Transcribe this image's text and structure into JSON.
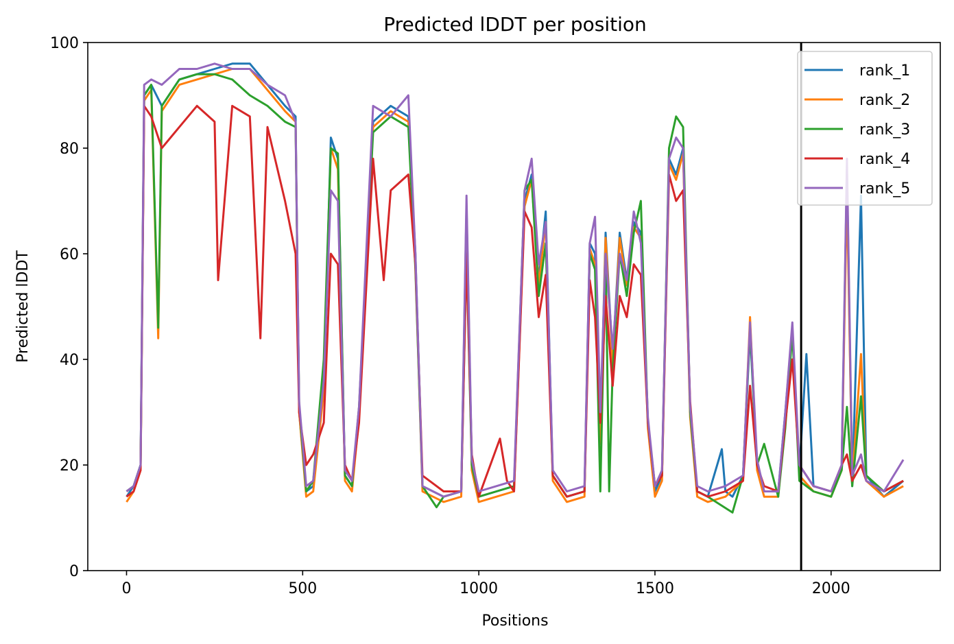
{
  "chart_data": {
    "type": "line",
    "title": "Predicted lDDT per position",
    "xlabel": "Positions",
    "ylabel": "Predicted lDDT",
    "xlim": [
      -110,
      2310
    ],
    "ylim": [
      0,
      100
    ],
    "xticks": [
      "0",
      "500",
      "1000",
      "1500",
      "2000"
    ],
    "yticks": [
      "0",
      "20",
      "40",
      "60",
      "80",
      "100"
    ],
    "vline_x": 1915,
    "legend_position": "upper right",
    "grid": false,
    "series": [
      {
        "name": "rank_1",
        "color": "#1f77b4",
        "x": [
          0,
          20,
          40,
          50,
          70,
          100,
          150,
          200,
          250,
          300,
          350,
          400,
          450,
          480,
          490,
          510,
          530,
          560,
          580,
          600,
          620,
          640,
          660,
          700,
          750,
          800,
          820,
          840,
          900,
          950,
          965,
          980,
          1000,
          1050,
          1100,
          1130,
          1150,
          1170,
          1190,
          1210,
          1250,
          1300,
          1315,
          1330,
          1345,
          1360,
          1380,
          1400,
          1420,
          1440,
          1460,
          1480,
          1500,
          1520,
          1540,
          1560,
          1580,
          1600,
          1620,
          1650,
          1690,
          1700,
          1720,
          1750,
          1770,
          1790,
          1810,
          1850,
          1870,
          1890,
          1910,
          1930,
          1950,
          2000,
          2030,
          2045,
          2060,
          2085,
          2100,
          2150,
          2205
        ],
        "y": [
          14,
          16,
          20,
          90,
          92,
          88,
          93,
          94,
          95,
          96,
          96,
          92,
          88,
          86,
          30,
          15,
          16,
          35,
          82,
          78,
          18,
          16,
          30,
          85,
          88,
          86,
          60,
          16,
          14,
          15,
          69,
          20,
          14,
          15,
          16,
          70,
          75,
          55,
          68,
          18,
          14,
          15,
          62,
          60,
          25,
          64,
          40,
          64,
          55,
          66,
          64,
          28,
          15,
          18,
          78,
          75,
          80,
          30,
          15,
          14,
          23,
          15,
          14,
          18,
          45,
          20,
          15,
          15,
          30,
          46,
          19,
          41,
          16,
          15,
          20,
          76,
          16,
          71,
          18,
          14,
          17
        ]
      },
      {
        "name": "rank_2",
        "color": "#ff7f0e",
        "x": [
          0,
          20,
          40,
          50,
          70,
          90,
          100,
          150,
          200,
          250,
          300,
          350,
          400,
          450,
          480,
          490,
          510,
          530,
          560,
          580,
          600,
          620,
          640,
          660,
          700,
          750,
          800,
          820,
          840,
          900,
          950,
          965,
          980,
          1000,
          1050,
          1100,
          1130,
          1150,
          1170,
          1190,
          1210,
          1250,
          1300,
          1315,
          1330,
          1345,
          1360,
          1380,
          1400,
          1420,
          1440,
          1460,
          1480,
          1500,
          1520,
          1540,
          1560,
          1580,
          1600,
          1620,
          1650,
          1700,
          1750,
          1770,
          1790,
          1810,
          1850,
          1870,
          1890,
          1910,
          1950,
          2000,
          2030,
          2045,
          2060,
          2085,
          2100,
          2150,
          2205
        ],
        "y": [
          13,
          15,
          19,
          89,
          91,
          44,
          87,
          92,
          93,
          94,
          95,
          95,
          91,
          87,
          85,
          30,
          14,
          15,
          34,
          80,
          76,
          17,
          15,
          29,
          84,
          87,
          85,
          58,
          15,
          13,
          14,
          68,
          19,
          13,
          14,
          15,
          69,
          74,
          54,
          66,
          17,
          13,
          14,
          61,
          58,
          24,
          63,
          39,
          63,
          54,
          65,
          63,
          27,
          14,
          17,
          77,
          74,
          79,
          29,
          14,
          13,
          14,
          17,
          48,
          19,
          14,
          14,
          29,
          46,
          18,
          15,
          14,
          19,
          72,
          17,
          41,
          17,
          14,
          16
        ]
      },
      {
        "name": "rank_3",
        "color": "#2ca02c",
        "x": [
          0,
          20,
          40,
          50,
          70,
          90,
          100,
          150,
          200,
          250,
          300,
          350,
          400,
          450,
          480,
          490,
          510,
          530,
          560,
          580,
          600,
          620,
          640,
          660,
          700,
          750,
          800,
          820,
          840,
          880,
          900,
          950,
          965,
          980,
          1000,
          1050,
          1100,
          1130,
          1150,
          1170,
          1190,
          1210,
          1250,
          1300,
          1315,
          1330,
          1345,
          1360,
          1370,
          1380,
          1400,
          1420,
          1440,
          1460,
          1480,
          1500,
          1520,
          1540,
          1560,
          1580,
          1600,
          1620,
          1650,
          1720,
          1750,
          1770,
          1790,
          1810,
          1850,
          1870,
          1890,
          1910,
          1950,
          2000,
          2030,
          2045,
          2060,
          2085,
          2100,
          2150,
          2205
        ],
        "y": [
          15,
          16,
          20,
          90,
          92,
          46,
          88,
          93,
          94,
          94,
          93,
          90,
          88,
          85,
          84,
          31,
          15,
          17,
          40,
          80,
          79,
          18,
          16,
          31,
          83,
          86,
          84,
          57,
          16,
          12,
          14,
          15,
          60,
          20,
          14,
          15,
          16,
          72,
          74,
          52,
          62,
          18,
          14,
          15,
          60,
          57,
          15,
          60,
          15,
          38,
          60,
          52,
          64,
          70,
          28,
          16,
          18,
          80,
          86,
          84,
          30,
          15,
          14,
          11,
          18,
          46,
          20,
          24,
          14,
          27,
          45,
          17,
          15,
          14,
          19,
          31,
          16,
          33,
          18,
          15,
          17
        ]
      },
      {
        "name": "rank_4",
        "color": "#d62728",
        "x": [
          0,
          20,
          40,
          50,
          70,
          100,
          150,
          200,
          250,
          260,
          300,
          350,
          380,
          400,
          450,
          480,
          490,
          510,
          530,
          560,
          580,
          600,
          620,
          640,
          660,
          700,
          730,
          750,
          800,
          820,
          840,
          900,
          950,
          965,
          980,
          1000,
          1060,
          1080,
          1100,
          1130,
          1150,
          1170,
          1190,
          1210,
          1250,
          1300,
          1315,
          1330,
          1345,
          1360,
          1380,
          1400,
          1420,
          1440,
          1460,
          1480,
          1500,
          1520,
          1540,
          1560,
          1580,
          1600,
          1620,
          1650,
          1700,
          1750,
          1770,
          1790,
          1810,
          1850,
          1870,
          1890,
          1910,
          1950,
          2000,
          2030,
          2045,
          2060,
          2085,
          2100,
          2150,
          2205
        ],
        "y": [
          14,
          15,
          19,
          88,
          86,
          80,
          84,
          88,
          85,
          55,
          88,
          86,
          44,
          84,
          70,
          60,
          30,
          20,
          22,
          28,
          60,
          58,
          20,
          17,
          28,
          78,
          55,
          72,
          75,
          58,
          18,
          15,
          15,
          60,
          22,
          14,
          25,
          17,
          15,
          68,
          65,
          48,
          56,
          18,
          14,
          15,
          55,
          48,
          28,
          52,
          35,
          52,
          48,
          58,
          56,
          28,
          16,
          18,
          75,
          70,
          72,
          32,
          15,
          14,
          15,
          17,
          35,
          20,
          16,
          15,
          28,
          40,
          20,
          16,
          15,
          20,
          22,
          17,
          20,
          17,
          15,
          17
        ]
      },
      {
        "name": "rank_5",
        "color": "#9467bd",
        "x": [
          0,
          20,
          40,
          50,
          70,
          100,
          150,
          200,
          250,
          300,
          350,
          400,
          450,
          480,
          490,
          510,
          530,
          560,
          580,
          600,
          620,
          640,
          660,
          700,
          750,
          800,
          820,
          840,
          900,
          950,
          965,
          980,
          1000,
          1050,
          1100,
          1130,
          1150,
          1170,
          1190,
          1210,
          1250,
          1300,
          1315,
          1330,
          1345,
          1360,
          1380,
          1400,
          1420,
          1440,
          1460,
          1480,
          1500,
          1520,
          1540,
          1560,
          1580,
          1600,
          1620,
          1650,
          1700,
          1750,
          1770,
          1790,
          1810,
          1850,
          1870,
          1890,
          1910,
          1950,
          2000,
          2030,
          2045,
          2060,
          2085,
          2100,
          2150,
          2205
        ],
        "y": [
          15,
          16,
          20,
          92,
          93,
          92,
          95,
          95,
          96,
          95,
          95,
          92,
          90,
          85,
          32,
          16,
          17,
          36,
          72,
          70,
          19,
          17,
          31,
          88,
          86,
          90,
          60,
          16,
          14,
          15,
          71,
          21,
          15,
          16,
          17,
          72,
          78,
          58,
          66,
          19,
          15,
          16,
          62,
          67,
          30,
          60,
          42,
          60,
          55,
          68,
          62,
          29,
          16,
          19,
          78,
          82,
          80,
          31,
          16,
          15,
          16,
          18,
          47,
          21,
          15,
          15,
          30,
          47,
          20,
          16,
          15,
          20,
          78,
          18,
          22,
          17,
          15,
          21
        ]
      }
    ]
  }
}
